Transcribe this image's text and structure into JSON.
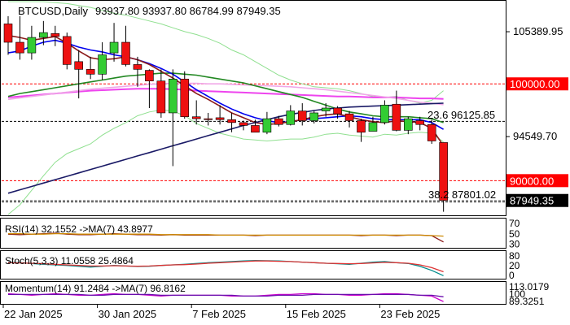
{
  "chart_data": {
    "type": "candlestick",
    "symbol_header": "BTCUSD,Daily",
    "ohlc_header": "93937.80 93937.80 86784.99 87949.35",
    "price_axis": {
      "min": 86500,
      "max": 108500,
      "ticks": [
        "105389.95",
        "94549.70"
      ],
      "tick_values": [
        105389.95,
        94549.7
      ]
    },
    "level_labels": [
      {
        "text": "100000.00",
        "value": 100000,
        "color": "#ff0000",
        "text_color": "#ffffff"
      },
      {
        "text": "90000.00",
        "value": 90000,
        "color": "#ff0000",
        "text_color": "#ffffff"
      },
      {
        "text": "87949.35",
        "value": 87949.35,
        "color": "#000000",
        "text_color": "#ffffff"
      }
    ],
    "fib_labels": [
      {
        "text": "23.6 96125.85",
        "value": 96125.85
      },
      {
        "text": "38.2 87801.02",
        "value": 87801.02
      }
    ],
    "x_labels": [
      "22 Jan 2025",
      "30 Jan 2025",
      "7 Feb 2025",
      "15 Feb 2025",
      "23 Feb 2025"
    ],
    "x_label_index": [
      0,
      8,
      16,
      24,
      32
    ],
    "candles": [
      {
        "o": 106200,
        "h": 107000,
        "l": 103000,
        "c": 104300
      },
      {
        "o": 104300,
        "h": 107000,
        "l": 102500,
        "c": 103200
      },
      {
        "o": 103200,
        "h": 106000,
        "l": 102500,
        "c": 104800
      },
      {
        "o": 104800,
        "h": 106500,
        "l": 104000,
        "c": 105300
      },
      {
        "o": 105200,
        "h": 106000,
        "l": 103900,
        "c": 104900
      },
      {
        "o": 104900,
        "h": 105300,
        "l": 101500,
        "c": 102000
      },
      {
        "o": 102300,
        "h": 103500,
        "l": 98500,
        "c": 101500
      },
      {
        "o": 101500,
        "h": 102800,
        "l": 100500,
        "c": 101000
      },
      {
        "o": 101000,
        "h": 104300,
        "l": 100400,
        "c": 103000
      },
      {
        "o": 103200,
        "h": 106300,
        "l": 102300,
        "c": 104300
      },
      {
        "o": 104300,
        "h": 106000,
        "l": 101800,
        "c": 102000
      },
      {
        "o": 102000,
        "h": 102800,
        "l": 99700,
        "c": 101500
      },
      {
        "o": 101400,
        "h": 101500,
        "l": 97500,
        "c": 100300
      },
      {
        "o": 100300,
        "h": 101500,
        "l": 96500,
        "c": 97000
      },
      {
        "o": 97000,
        "h": 101500,
        "l": 91500,
        "c": 100500
      },
      {
        "o": 100500,
        "h": 101300,
        "l": 96400,
        "c": 96600
      },
      {
        "o": 96600,
        "h": 98300,
        "l": 95800,
        "c": 96400
      },
      {
        "o": 96400,
        "h": 97000,
        "l": 95700,
        "c": 96300
      },
      {
        "o": 96500,
        "h": 97800,
        "l": 95800,
        "c": 96300
      },
      {
        "o": 96300,
        "h": 97000,
        "l": 95000,
        "c": 96000
      },
      {
        "o": 96000,
        "h": 96200,
        "l": 95200,
        "c": 95700
      },
      {
        "o": 95700,
        "h": 96300,
        "l": 95000,
        "c": 95000
      },
      {
        "o": 95000,
        "h": 97100,
        "l": 94800,
        "c": 96400
      },
      {
        "o": 96400,
        "h": 96700,
        "l": 95600,
        "c": 95800
      },
      {
        "o": 95800,
        "h": 97800,
        "l": 95700,
        "c": 97200
      },
      {
        "o": 97200,
        "h": 98000,
        "l": 95700,
        "c": 96200
      },
      {
        "o": 96200,
        "h": 97200,
        "l": 95900,
        "c": 97000
      },
      {
        "o": 97200,
        "h": 98000,
        "l": 96600,
        "c": 97500
      },
      {
        "o": 97500,
        "h": 97700,
        "l": 96400,
        "c": 96900
      },
      {
        "o": 96900,
        "h": 97200,
        "l": 95500,
        "c": 96200
      },
      {
        "o": 96200,
        "h": 96400,
        "l": 94000,
        "c": 95000
      },
      {
        "o": 95100,
        "h": 96600,
        "l": 95100,
        "c": 96000
      },
      {
        "o": 96000,
        "h": 98300,
        "l": 95800,
        "c": 97800
      },
      {
        "o": 97900,
        "h": 99300,
        "l": 95100,
        "c": 95200
      },
      {
        "o": 95200,
        "h": 96600,
        "l": 94800,
        "c": 96400
      },
      {
        "o": 96200,
        "h": 96600,
        "l": 95200,
        "c": 95800
      },
      {
        "o": 95800,
        "h": 96300,
        "l": 93800,
        "c": 94100
      },
      {
        "o": 93938,
        "h": 93938,
        "l": 86785,
        "c": 87949
      }
    ],
    "overlays": [
      {
        "name": "bb_upper",
        "color": "#90e090",
        "values": [
          108500,
          108500,
          108500,
          108500,
          108400,
          108300,
          108100,
          107900,
          107600,
          107300,
          107100,
          106800,
          106500,
          106200,
          105800,
          105400,
          105100,
          104700,
          104200,
          103500,
          103000,
          102300,
          101600,
          100900,
          100400,
          100000,
          99700,
          99600,
          99500,
          99300,
          99000,
          98700,
          98600,
          98700,
          98300,
          98000,
          98300,
          99300
        ]
      },
      {
        "name": "bb_lower",
        "color": "#90e090",
        "values": [
          86500,
          87500,
          89000,
          90500,
          91900,
          92800,
          93300,
          93800,
          94700,
          95400,
          96000,
          96700,
          97100,
          97300,
          97200,
          96700,
          95900,
          95400,
          94900,
          94600,
          94300,
          94200,
          94100,
          94200,
          94300,
          94300,
          94500,
          94800,
          94900,
          94700,
          94600,
          94500,
          94800,
          94700,
          94900,
          95000,
          94900,
          94000
        ]
      },
      {
        "name": "ma_magenta",
        "color": "#ee44ee",
        "values": [
          98600,
          98700,
          98800,
          98900,
          99000,
          99100,
          99200,
          99300,
          99350,
          99400,
          99450,
          99500,
          99500,
          99500,
          99450,
          99400,
          99300,
          99250,
          99200,
          99150,
          99100,
          99050,
          99000,
          98950,
          98900,
          98850,
          98800,
          98750,
          98700,
          98700,
          98650,
          98600,
          98600,
          98600,
          98550,
          98500,
          98500,
          98450
        ]
      },
      {
        "name": "ma_pink",
        "color": "#f0a8e8",
        "values": [
          98400,
          98550,
          98700,
          98850,
          99000,
          99150,
          99300,
          99450,
          99550,
          99650,
          99750,
          99850,
          99950,
          100000,
          100050,
          100050,
          100050,
          100000,
          100000,
          99950,
          99900,
          99850,
          99800,
          99750,
          99700,
          99600,
          99500,
          99400,
          99250,
          99100,
          98950,
          98800,
          98650,
          98500,
          98300,
          98100,
          98000,
          97850
        ]
      },
      {
        "name": "ma_green",
        "color": "#228822",
        "values": [
          98700,
          99000,
          99200,
          99400,
          99600,
          99800,
          100000,
          100200,
          100400,
          100600,
          100800,
          100900,
          101000,
          101100,
          101100,
          101000,
          100900,
          100700,
          100500,
          100300,
          100100,
          99800,
          99500,
          99200,
          98900,
          98600,
          98200,
          97800,
          97400,
          97100,
          96900,
          96700,
          96600,
          96600,
          96600,
          96500,
          96400,
          96000
        ]
      },
      {
        "name": "ma_blue_fast",
        "color": "#0000ee",
        "values": [
          103200,
          103400,
          103900,
          104300,
          104500,
          104200,
          103800,
          103500,
          103300,
          103000,
          102800,
          102500,
          102100,
          101600,
          101000,
          100200,
          99400,
          98700,
          98000,
          97400,
          96900,
          96500,
          96200,
          96000,
          96100,
          96300,
          96400,
          96500,
          96600,
          96700,
          96600,
          96400,
          96300,
          96300,
          96300,
          96300,
          96000,
          95300
        ]
      },
      {
        "name": "ma_darkred",
        "color": "#8b1a1a",
        "values": [
          105000,
          104800,
          104500,
          104700,
          104900,
          104200,
          103400,
          102700,
          102500,
          102600,
          102800,
          102500,
          102000,
          101300,
          100600,
          99800,
          99000,
          98400,
          97700,
          97000,
          96500,
          96000,
          95800,
          95900,
          96100,
          96300,
          96600,
          96800,
          96900,
          96600,
          96300,
          96100,
          96000,
          96200,
          96100,
          96000,
          95400,
          93600
        ]
      },
      {
        "name": "ma_long_navy",
        "color": "#1a1a66",
        "values": [
          88700,
          89050,
          89400,
          89750,
          90100,
          90450,
          90800,
          91150,
          91500,
          91850,
          92200,
          92550,
          92900,
          93250,
          93600,
          93950,
          94300,
          94650,
          95000,
          95350,
          95700,
          96000,
          96300,
          96600,
          96850,
          97050,
          97250,
          97400,
          97500,
          97600,
          97650,
          97700,
          97750,
          97800,
          97850,
          97900,
          97950,
          98000
        ]
      }
    ],
    "indicators": [
      {
        "name": "rsi",
        "label": "RSI(14) 32.1552 ->MA(7) 43.8977",
        "ticks": [
          "70",
          "50",
          "30"
        ],
        "range": [
          20,
          80
        ],
        "series": [
          {
            "color": "#8b1a1a",
            "values": [
              48,
              47,
              48,
              49,
              50,
              48,
              47,
              47,
              48,
              49,
              48,
              47,
              47,
              46,
              47,
              46,
              46,
              46,
              46,
              46,
              46,
              45,
              46,
              46,
              46,
              46,
              46,
              46,
              46,
              46,
              45,
              46,
              46,
              45,
              46,
              46,
              45,
              32
            ]
          },
          {
            "color": "#cc8800",
            "values": [
              49,
              49,
              48,
              48,
              49,
              49,
              48,
              48,
              48,
              48,
              48,
              48,
              48,
              47,
              47,
              47,
              47,
              47,
              46,
              46,
              46,
              46,
              46,
              46,
              46,
              46,
              46,
              46,
              46,
              46,
              46,
              46,
              46,
              46,
              46,
              46,
              45,
              44
            ]
          }
        ]
      },
      {
        "name": "stoch",
        "label": "Stoch(5,3,3) 11.0558 25.4864",
        "ticks": [
          "80",
          "20",
          "0"
        ],
        "range": [
          0,
          100
        ],
        "series": [
          {
            "color": "#008b8b",
            "values": [
              60,
              58,
              55,
              52,
              50,
              48,
              45,
              42,
              45,
              48,
              46,
              44,
              45,
              48,
              50,
              52,
              55,
              58,
              60,
              62,
              64,
              66,
              65,
              64,
              62,
              60,
              58,
              56,
              54,
              52,
              56,
              60,
              62,
              58,
              55,
              45,
              30,
              11
            ]
          },
          {
            "color": "#dd3333",
            "values": [
              58,
              57,
              56,
              54,
              52,
              50,
              48,
              46,
              46,
              47,
              46,
              45,
              46,
              48,
              50,
              51,
              53,
              56,
              58,
              60,
              62,
              64,
              64,
              63,
              62,
              60,
              58,
              56,
              55,
              54,
              55,
              57,
              59,
              58,
              56,
              50,
              40,
              25
            ]
          }
        ]
      },
      {
        "name": "momentum",
        "label": "Momentum(14) 91.2484 ->MA(7) 96.8162",
        "ticks": [
          "113.0179",
          "100",
          "89.3251"
        ],
        "range": [
          88,
          116
        ],
        "series": [
          {
            "color": "#cc00cc",
            "values": [
              101,
              100,
              99,
              100,
              101,
              100,
              99,
              99,
              100,
              101,
              100,
              100,
              99,
              98,
              99,
              99,
              99,
              99,
              99,
              98,
              98,
              98,
              99,
              100,
              100,
              101,
              101,
              100,
              100,
              99,
              99,
              100,
              101,
              101,
              100,
              99,
              98,
              91
            ]
          },
          {
            "color": "#6a0dad",
            "values": [
              100,
              100,
              100,
              100,
              100,
              100,
              100,
              99,
              99,
              100,
              100,
              100,
              100,
              99,
              99,
              99,
              99,
              99,
              99,
              99,
              98,
              98,
              98,
              99,
              99,
              99,
              100,
              100,
              100,
              100,
              100,
              100,
              100,
              100,
              100,
              99,
              99,
              97
            ]
          }
        ]
      }
    ]
  }
}
